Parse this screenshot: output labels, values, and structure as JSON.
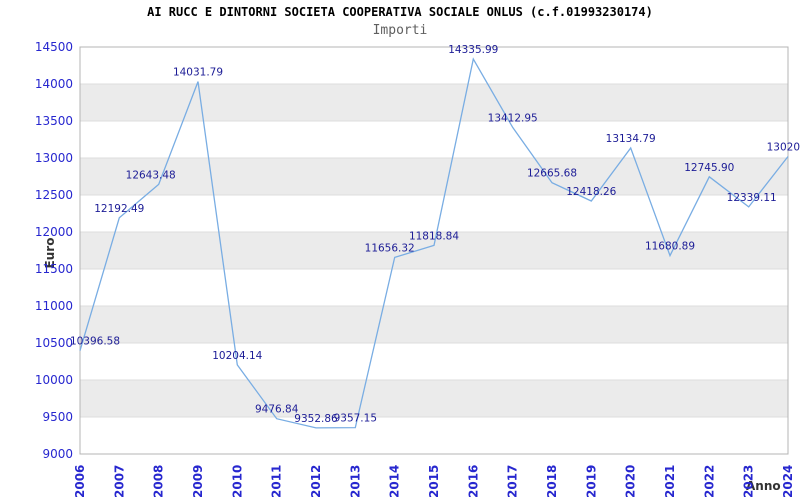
{
  "header": {
    "title": "AI RUCC E DINTORNI SOCIETA COOPERATIVA SOCIALE ONLUS (c.f.01993230174)",
    "subtitle": "Importi"
  },
  "axes": {
    "y_label": "Euro",
    "x_label": "Anno"
  },
  "chart_data": {
    "type": "line",
    "title": "Importi",
    "xlabel": "Anno",
    "ylabel": "Euro",
    "categories": [
      "2006",
      "2007",
      "2008",
      "2009",
      "2010",
      "2011",
      "2012",
      "2013",
      "2014",
      "2015",
      "2016",
      "2017",
      "2018",
      "2019",
      "2020",
      "2021",
      "2022",
      "2023",
      "2024"
    ],
    "values": [
      10396.58,
      12192.49,
      12643.48,
      14031.79,
      10204.14,
      9476.84,
      9352.86,
      9357.15,
      11656.32,
      11818.84,
      14335.99,
      13412.95,
      12665.68,
      12418.26,
      13134.79,
      11680.89,
      12745.9,
      12339.11,
      13020
    ],
    "point_labels": [
      "10396.58",
      "12192.49",
      "12643.48",
      "14031.79",
      "10204.14",
      "9476.84",
      "9352.86",
      "9357.15",
      "11656.32",
      "11818.84",
      "14335.99",
      "13412.95",
      "12665.68",
      "12418.26",
      "13134.79",
      "11680.89",
      "12745.90",
      "12339.11",
      "13020."
    ],
    "ylim": [
      9000,
      14500
    ],
    "y_ticks": [
      14500,
      14000,
      13500,
      13000,
      12500,
      12000,
      11500,
      11000,
      10500,
      10000,
      9500,
      9000
    ],
    "grid": "horizontal-with-alternating-bands",
    "legend": "none",
    "colors": {
      "line": "#79ade3",
      "point_label": "#1c1c96",
      "tick_label": "#2727cf",
      "band": "#ebebeb",
      "grid": "#dcdcdc",
      "border": "#b4b4b4",
      "title": "#000000",
      "subtitle": "#5f5f5f",
      "axis_title": "#333333",
      "background": "#ffffff"
    }
  }
}
